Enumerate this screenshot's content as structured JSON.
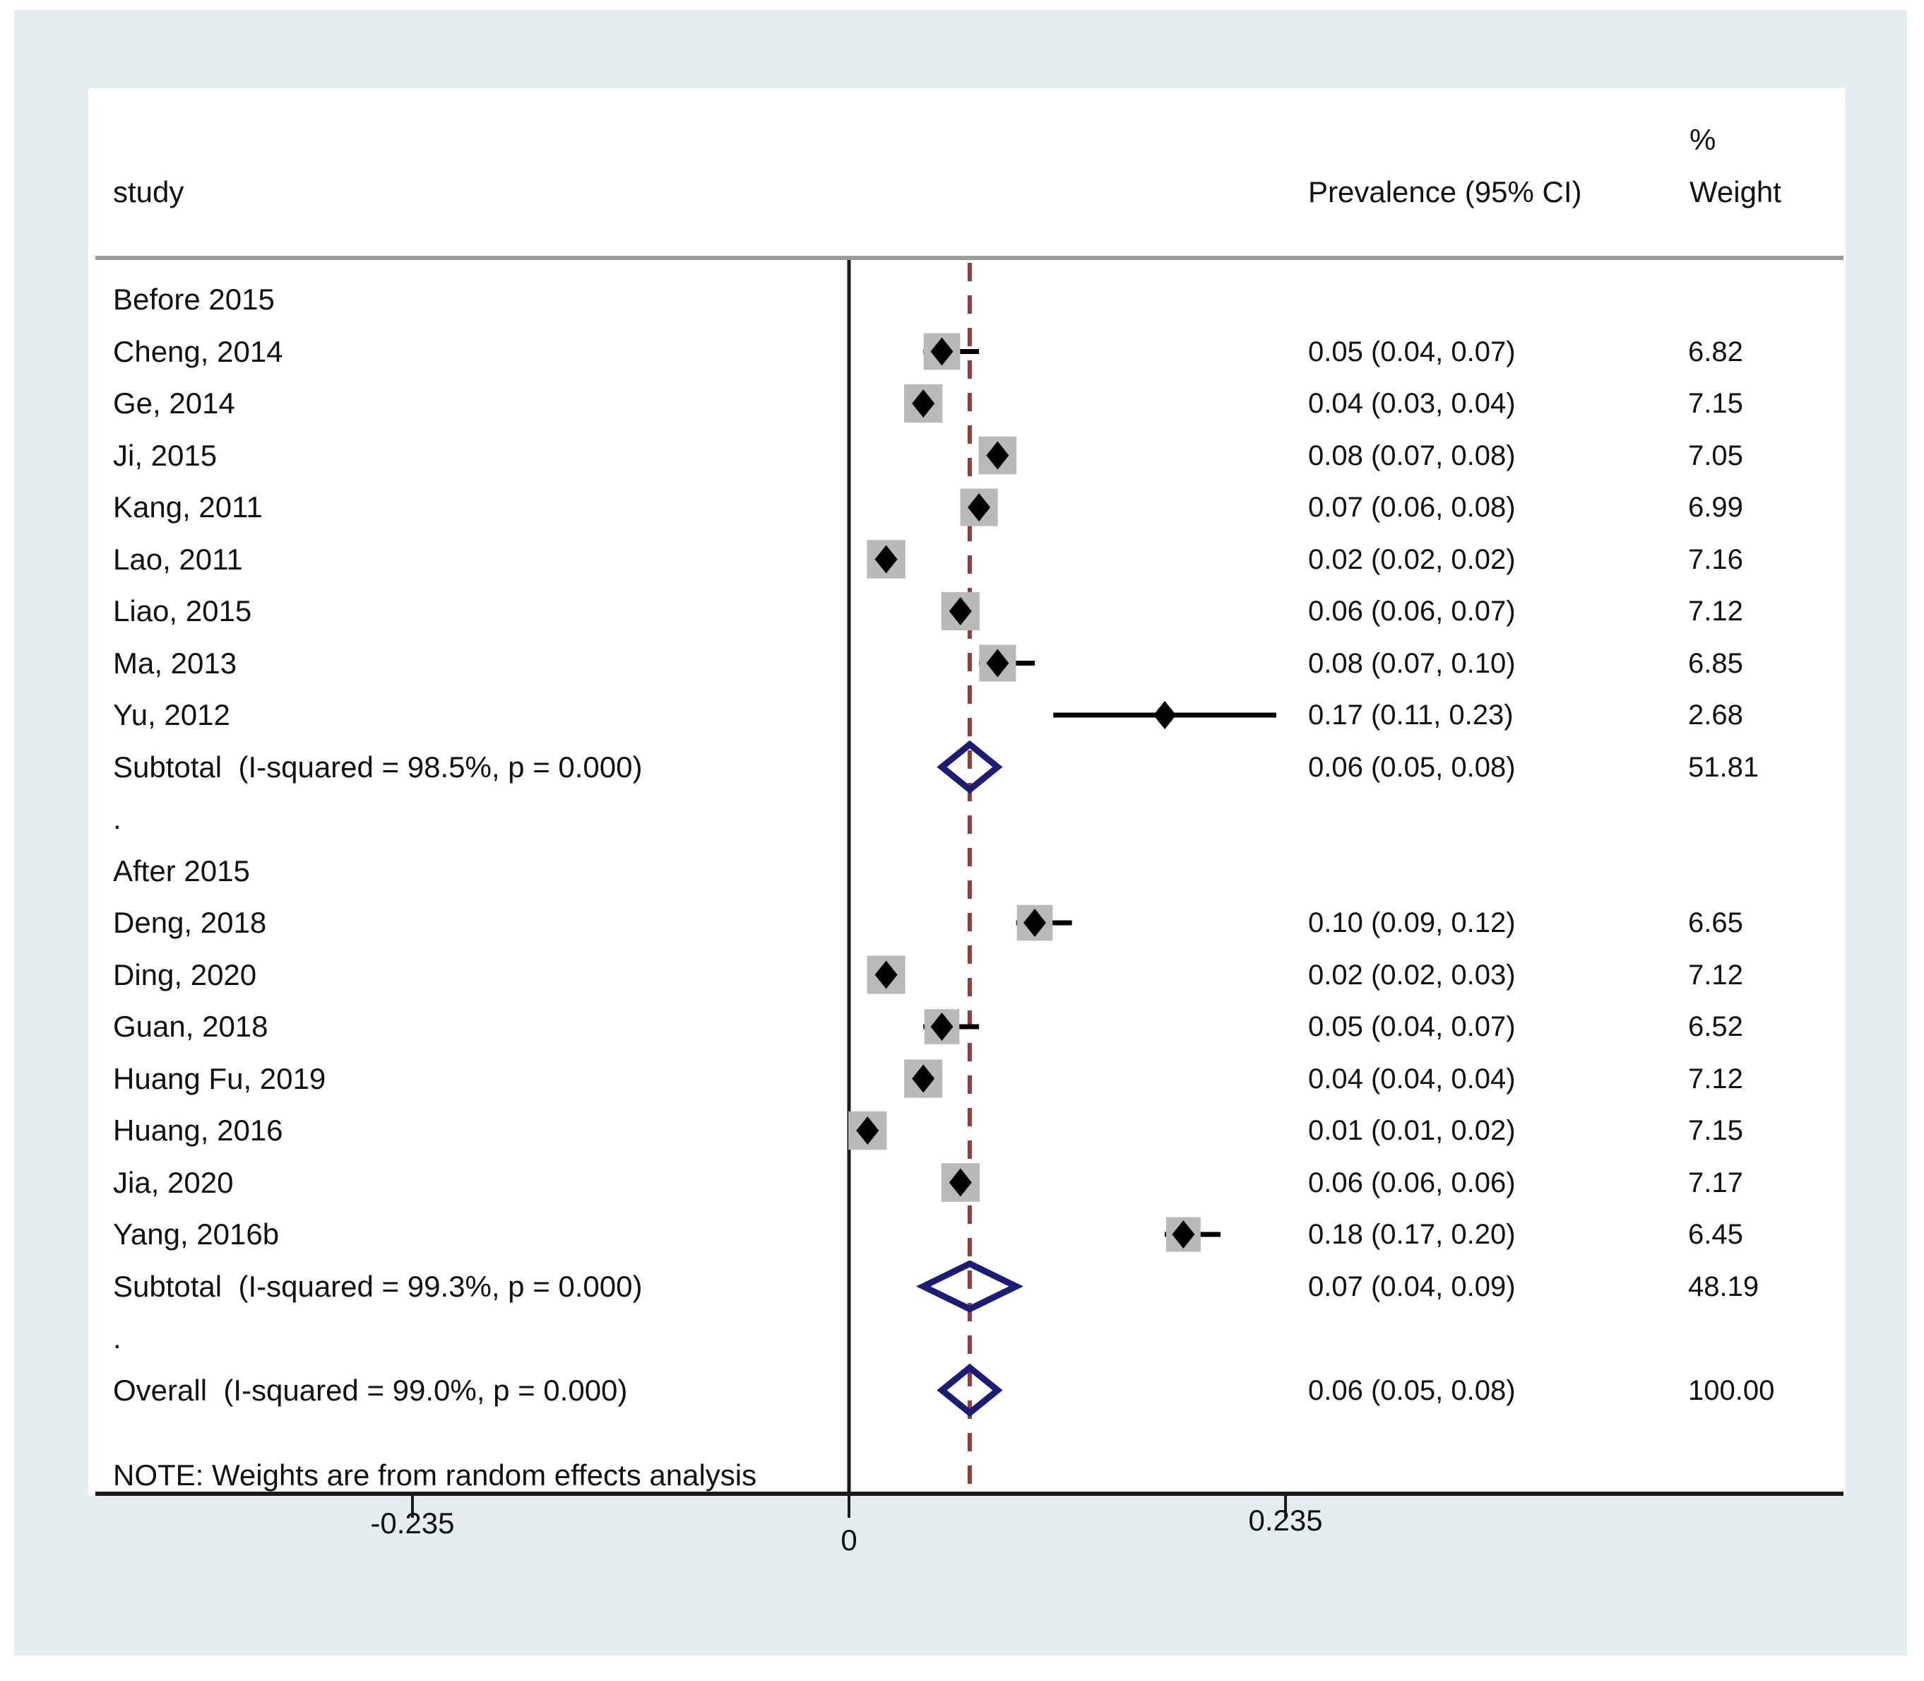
{
  "figure": {
    "columns": {
      "study": "study",
      "prevalence": "Prevalence (95% CI)",
      "percent": "%",
      "weight": "Weight"
    },
    "note": "NOTE: Weights are from random effects analysis",
    "colors": {
      "background": "#e4eef0",
      "panel": "#ffffff",
      "box": "#b9b9b9",
      "marker": "#000000",
      "diamond_outline": "#1b1b78",
      "dashed_line": "#963a3c",
      "axis": "#1a1a1a",
      "header_rule": "#9a9a9a"
    }
  },
  "chart_data": {
    "type": "forest",
    "title": "",
    "xlabel": "Prevalence",
    "null_line": 0,
    "axis_ticks": [
      {
        "value": -0.235,
        "label": "-0.235"
      },
      {
        "value": 0,
        "label": "0"
      },
      {
        "value": 0.235,
        "label": "0.235"
      }
    ],
    "legend_position": "none",
    "grid": false,
    "rows": [
      {
        "kind": "group",
        "label": "Before 2015"
      },
      {
        "kind": "study",
        "label": "Cheng, 2014",
        "est": 0.05,
        "lo": 0.04,
        "hi": 0.07,
        "ci_text": "0.05 (0.04, 0.07)",
        "weight": 6.82,
        "weight_text": "6.82"
      },
      {
        "kind": "study",
        "label": "Ge, 2014",
        "est": 0.04,
        "lo": 0.03,
        "hi": 0.04,
        "ci_text": "0.04 (0.03, 0.04)",
        "weight": 7.15,
        "weight_text": "7.15"
      },
      {
        "kind": "study",
        "label": "Ji, 2015",
        "est": 0.08,
        "lo": 0.07,
        "hi": 0.08,
        "ci_text": "0.08 (0.07, 0.08)",
        "weight": 7.05,
        "weight_text": "7.05"
      },
      {
        "kind": "study",
        "label": "Kang, 2011",
        "est": 0.07,
        "lo": 0.06,
        "hi": 0.08,
        "ci_text": "0.07 (0.06, 0.08)",
        "weight": 6.99,
        "weight_text": "6.99"
      },
      {
        "kind": "study",
        "label": "Lao, 2011",
        "est": 0.02,
        "lo": 0.02,
        "hi": 0.02,
        "ci_text": "0.02 (0.02, 0.02)",
        "weight": 7.16,
        "weight_text": "7.16"
      },
      {
        "kind": "study",
        "label": "Liao, 2015",
        "est": 0.06,
        "lo": 0.06,
        "hi": 0.07,
        "ci_text": "0.06 (0.06, 0.07)",
        "weight": 7.12,
        "weight_text": "7.12"
      },
      {
        "kind": "study",
        "label": "Ma, 2013",
        "est": 0.08,
        "lo": 0.07,
        "hi": 0.1,
        "ci_text": "0.08 (0.07, 0.10)",
        "weight": 6.85,
        "weight_text": "6.85"
      },
      {
        "kind": "study",
        "label": "Yu, 2012",
        "est": 0.17,
        "lo": 0.11,
        "hi": 0.23,
        "ci_text": "0.17 (0.11, 0.23)",
        "weight": 2.68,
        "weight_text": "2.68"
      },
      {
        "kind": "subtotal",
        "label": "Subtotal  (I-squared = 98.5%, p = 0.000)",
        "est": 0.06,
        "lo": 0.05,
        "hi": 0.08,
        "ci_text": "0.06 (0.05, 0.08)",
        "weight": 51.81,
        "weight_text": "51.81"
      },
      {
        "kind": "dot",
        "label": "."
      },
      {
        "kind": "group",
        "label": "After 2015"
      },
      {
        "kind": "study",
        "label": "Deng, 2018",
        "est": 0.1,
        "lo": 0.09,
        "hi": 0.12,
        "ci_text": "0.10 (0.09, 0.12)",
        "weight": 6.65,
        "weight_text": "6.65"
      },
      {
        "kind": "study",
        "label": "Ding, 2020",
        "est": 0.02,
        "lo": 0.02,
        "hi": 0.03,
        "ci_text": "0.02 (0.02, 0.03)",
        "weight": 7.12,
        "weight_text": "7.12"
      },
      {
        "kind": "study",
        "label": "Guan, 2018",
        "est": 0.05,
        "lo": 0.04,
        "hi": 0.07,
        "ci_text": "0.05 (0.04, 0.07)",
        "weight": 6.52,
        "weight_text": "6.52"
      },
      {
        "kind": "study",
        "label": "Huang Fu, 2019",
        "est": 0.04,
        "lo": 0.04,
        "hi": 0.04,
        "ci_text": "0.04 (0.04, 0.04)",
        "weight": 7.12,
        "weight_text": "7.12"
      },
      {
        "kind": "study",
        "label": "Huang, 2016",
        "est": 0.01,
        "lo": 0.01,
        "hi": 0.02,
        "ci_text": "0.01 (0.01, 0.02)",
        "weight": 7.15,
        "weight_text": "7.15"
      },
      {
        "kind": "study",
        "label": "Jia, 2020",
        "est": 0.06,
        "lo": 0.06,
        "hi": 0.06,
        "ci_text": "0.06 (0.06, 0.06)",
        "weight": 7.17,
        "weight_text": "7.17"
      },
      {
        "kind": "study",
        "label": "Yang, 2016b",
        "est": 0.18,
        "lo": 0.17,
        "hi": 0.2,
        "ci_text": "0.18 (0.17, 0.20)",
        "weight": 6.45,
        "weight_text": "6.45"
      },
      {
        "kind": "subtotal",
        "label": "Subtotal  (I-squared = 99.3%, p = 0.000)",
        "est": 0.07,
        "lo": 0.04,
        "hi": 0.09,
        "ci_text": "0.07 (0.04, 0.09)",
        "weight": 48.19,
        "weight_text": "48.19"
      },
      {
        "kind": "dot",
        "label": "."
      },
      {
        "kind": "overall",
        "label": "Overall  (I-squared = 99.0%, p = 0.000)",
        "est": 0.06,
        "lo": 0.05,
        "hi": 0.08,
        "ci_text": "0.06 (0.05, 0.08)",
        "weight": 100.0,
        "weight_text": "100.00"
      }
    ]
  }
}
